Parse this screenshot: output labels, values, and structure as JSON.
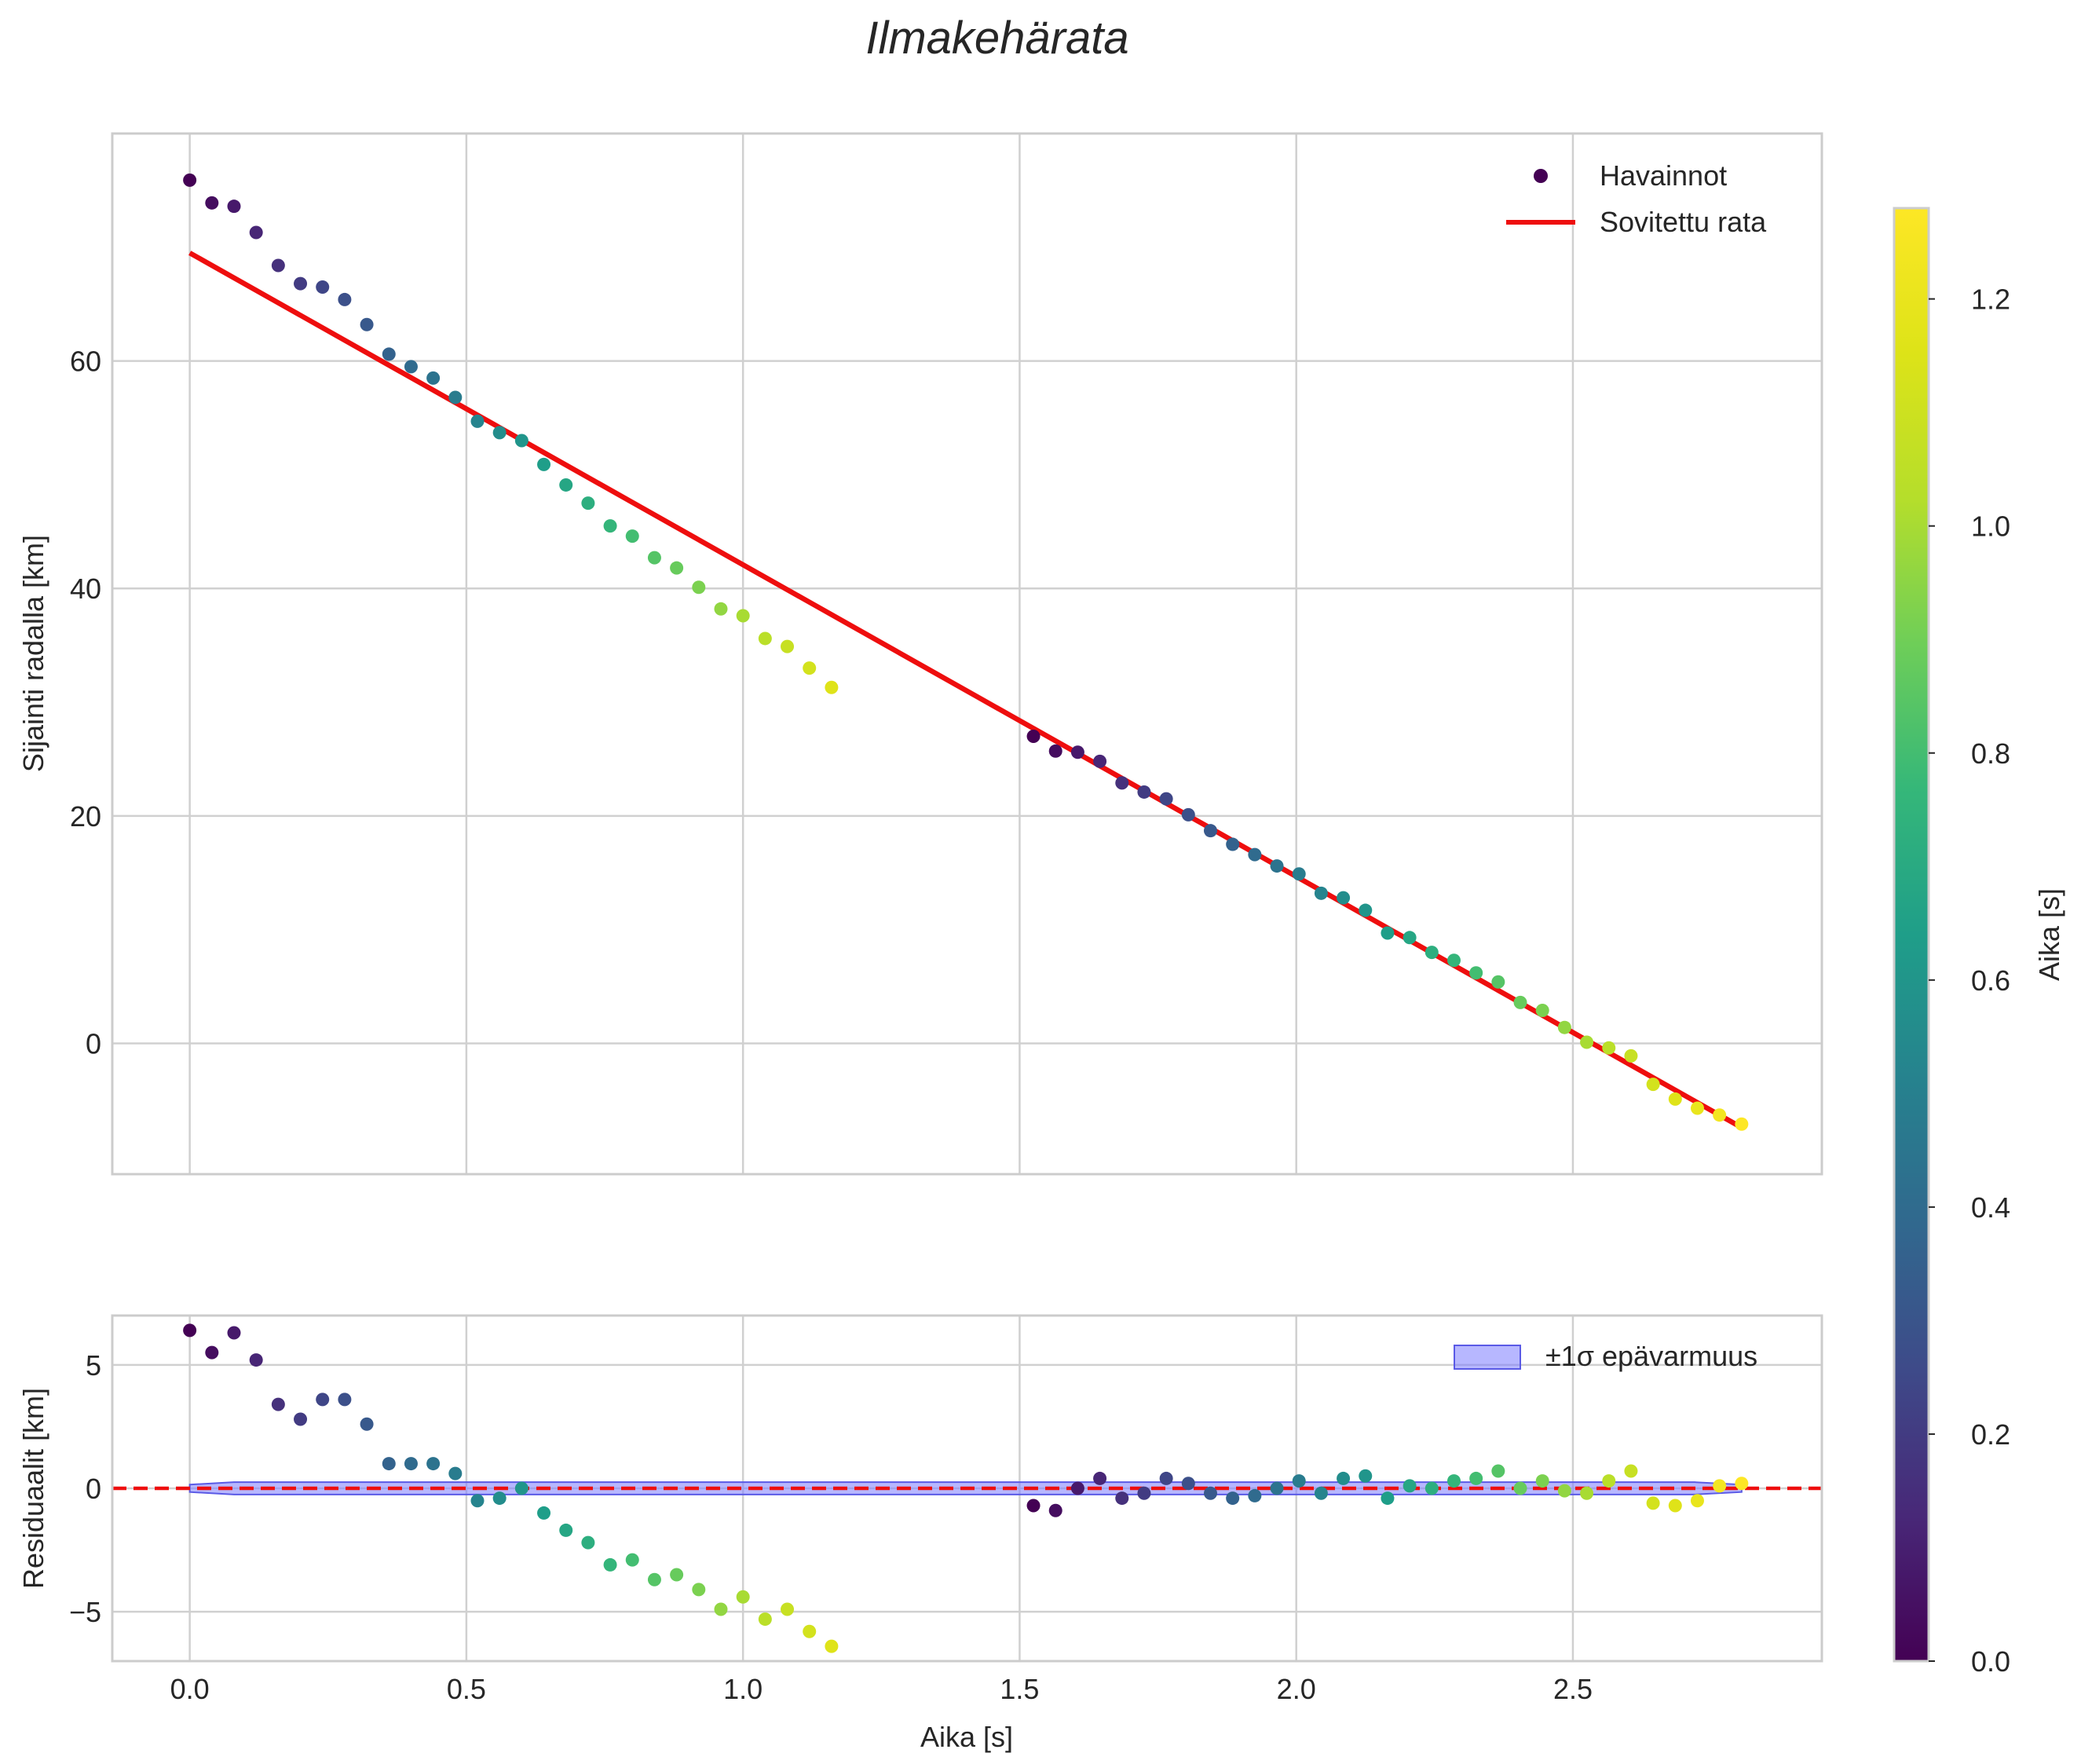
{
  "chart_data": [
    {
      "type": "scatter",
      "title": "Ilmakehärata",
      "xlabel": "",
      "ylabel": "Sijainti radalla [km]",
      "xlim": [
        -0.14,
        2.95
      ],
      "ylim": [
        -11.5,
        80
      ],
      "xticks": [
        0.0,
        0.5,
        1.0,
        1.5,
        2.0,
        2.5
      ],
      "yticks": [
        0,
        20,
        40,
        60
      ],
      "grid": true,
      "legend_position": "top-right",
      "legend": [
        "Havainnot",
        "Sovitettu rata"
      ],
      "series": [
        {
          "name": "Havainnot",
          "kind": "scatter",
          "color_by": "Aika [s]",
          "segments": [
            {
              "x": [
                0.0,
                0.04,
                0.08,
                0.12,
                0.16,
                0.2,
                0.24,
                0.28,
                0.32,
                0.36,
                0.4,
                0.44,
                0.48,
                0.52,
                0.56,
                0.6,
                0.64,
                0.68,
                0.72,
                0.76,
                0.8,
                0.84,
                0.88,
                0.92,
                0.96,
                1.0,
                1.04,
                1.08,
                1.12,
                1.16
              ],
              "y": [
                75.9,
                73.9,
                73.6,
                71.3,
                68.4,
                66.8,
                66.5,
                65.4,
                63.2,
                60.6,
                59.5,
                58.5,
                56.8,
                54.7,
                53.7,
                53.0,
                50.9,
                49.1,
                47.5,
                45.5,
                44.6,
                42.7,
                41.8,
                40.1,
                38.2,
                37.6,
                35.6,
                34.9,
                33.0,
                31.3
              ],
              "c": [
                0.0,
                0.04,
                0.08,
                0.12,
                0.16,
                0.2,
                0.24,
                0.28,
                0.32,
                0.36,
                0.4,
                0.44,
                0.48,
                0.52,
                0.56,
                0.6,
                0.64,
                0.68,
                0.72,
                0.76,
                0.8,
                0.84,
                0.88,
                0.92,
                0.96,
                1.0,
                1.04,
                1.08,
                1.12,
                1.16
              ]
            },
            {
              "x": [
                1.525,
                1.565,
                1.605,
                1.645,
                1.685,
                1.725,
                1.765,
                1.805,
                1.845,
                1.885,
                1.925,
                1.965,
                2.005,
                2.045,
                2.085,
                2.125,
                2.165,
                2.205,
                2.245,
                2.285,
                2.325,
                2.365,
                2.405,
                2.445,
                2.485,
                2.525,
                2.565,
                2.605,
                2.645,
                2.685,
                2.725,
                2.765,
                2.805
              ],
              "y": [
                27.0,
                25.7,
                25.6,
                24.8,
                22.9,
                22.1,
                21.5,
                20.1,
                18.7,
                17.5,
                16.6,
                15.6,
                14.9,
                13.2,
                12.8,
                11.7,
                9.7,
                9.3,
                8.0,
                7.3,
                6.2,
                5.4,
                3.6,
                2.9,
                1.4,
                0.1,
                -0.4,
                -1.1,
                -3.6,
                -4.9,
                -5.7,
                -6.3,
                -7.1
              ],
              "c": [
                0.0,
                0.04,
                0.08,
                0.12,
                0.16,
                0.2,
                0.24,
                0.28,
                0.32,
                0.36,
                0.4,
                0.44,
                0.48,
                0.52,
                0.56,
                0.6,
                0.64,
                0.68,
                0.72,
                0.76,
                0.8,
                0.84,
                0.88,
                0.92,
                0.96,
                1.0,
                1.04,
                1.08,
                1.12,
                1.16,
                1.2,
                1.24,
                1.28
              ]
            }
          ]
        },
        {
          "name": "Sovitettu rata",
          "kind": "line",
          "color": "#ee0e0e",
          "x": [
            0.0,
            2.805
          ],
          "y": [
            69.5,
            -7.4
          ]
        }
      ]
    },
    {
      "type": "scatter",
      "title": "",
      "xlabel": "Aika [s]",
      "ylabel": "Residuaalit [km]",
      "xlim": [
        -0.14,
        2.95
      ],
      "ylim": [
        -7,
        7
      ],
      "xticks": [
        0.0,
        0.5,
        1.0,
        1.5,
        2.0,
        2.5
      ],
      "xticklabels": [
        "0.0",
        "0.5",
        "1.0",
        "1.5",
        "2.0",
        "2.5"
      ],
      "yticks": [
        -5,
        0,
        5
      ],
      "grid": true,
      "legend_position": "top-right",
      "legend": [
        "±1σ epävarmuus"
      ],
      "zero_line": {
        "y": 0,
        "color": "#ee0e0e",
        "style": "dashed"
      },
      "band": {
        "name": "±1σ epävarmuus",
        "x": [
          0.0,
          0.08,
          2.72,
          2.805
        ],
        "lower": [
          -0.15,
          -0.25,
          -0.25,
          -0.15
        ],
        "upper": [
          0.15,
          0.25,
          0.25,
          0.15
        ],
        "color": "#7b7bff"
      },
      "segments": [
        {
          "x": [
            0.0,
            0.04,
            0.08,
            0.12,
            0.16,
            0.2,
            0.24,
            0.28,
            0.32,
            0.36,
            0.4,
            0.44,
            0.48,
            0.52,
            0.56,
            0.6,
            0.64,
            0.68,
            0.72,
            0.76,
            0.8,
            0.84,
            0.88,
            0.92,
            0.96,
            1.0,
            1.04,
            1.08,
            1.12,
            1.16
          ],
          "y": [
            6.4,
            5.5,
            6.3,
            5.2,
            3.4,
            2.8,
            3.6,
            3.6,
            2.6,
            1.0,
            1.0,
            1.0,
            0.6,
            -0.5,
            -0.4,
            0.0,
            -1.0,
            -1.7,
            -2.2,
            -3.1,
            -2.9,
            -3.7,
            -3.5,
            -4.1,
            -4.9,
            -4.4,
            -5.3,
            -4.9,
            -5.8,
            -6.4
          ],
          "c": [
            0.0,
            0.04,
            0.08,
            0.12,
            0.16,
            0.2,
            0.24,
            0.28,
            0.32,
            0.36,
            0.4,
            0.44,
            0.48,
            0.52,
            0.56,
            0.6,
            0.64,
            0.68,
            0.72,
            0.76,
            0.8,
            0.84,
            0.88,
            0.92,
            0.96,
            1.0,
            1.04,
            1.08,
            1.12,
            1.16
          ]
        },
        {
          "x": [
            1.525,
            1.565,
            1.605,
            1.645,
            1.685,
            1.725,
            1.765,
            1.805,
            1.845,
            1.885,
            1.925,
            1.965,
            2.005,
            2.045,
            2.085,
            2.125,
            2.165,
            2.205,
            2.245,
            2.285,
            2.325,
            2.365,
            2.405,
            2.445,
            2.485,
            2.525,
            2.565,
            2.605,
            2.645,
            2.685,
            2.725,
            2.765,
            2.805
          ],
          "y": [
            -0.7,
            -0.9,
            0.0,
            0.4,
            -0.4,
            -0.2,
            0.4,
            0.2,
            -0.2,
            -0.4,
            -0.3,
            0.0,
            0.3,
            -0.2,
            0.4,
            0.5,
            -0.4,
            0.1,
            0.0,
            0.3,
            0.4,
            0.7,
            0.0,
            0.3,
            -0.1,
            -0.2,
            0.3,
            0.7,
            -0.6,
            -0.7,
            -0.5,
            0.1,
            0.2
          ],
          "c": [
            0.0,
            0.04,
            0.08,
            0.12,
            0.16,
            0.2,
            0.24,
            0.28,
            0.32,
            0.36,
            0.4,
            0.44,
            0.48,
            0.52,
            0.56,
            0.6,
            0.64,
            0.68,
            0.72,
            0.76,
            0.8,
            0.84,
            0.88,
            0.92,
            0.96,
            1.0,
            1.04,
            1.08,
            1.12,
            1.16,
            1.2,
            1.24,
            1.28
          ]
        }
      ]
    }
  ],
  "colorbar": {
    "label": "Aika [s]",
    "range": [
      0.0,
      1.28
    ],
    "ticks": [
      0.0,
      0.2,
      0.4,
      0.6,
      0.8,
      1.0,
      1.2
    ],
    "ticklabels": [
      "0.0",
      "0.2",
      "0.4",
      "0.6",
      "0.8",
      "1.0",
      "1.2"
    ],
    "colormap": "viridis"
  },
  "colors": {
    "fit_line": "#ee0e0e",
    "grid": "#d0d0d0",
    "band_fill": "#7b7bff",
    "frame": "#cccccc"
  }
}
